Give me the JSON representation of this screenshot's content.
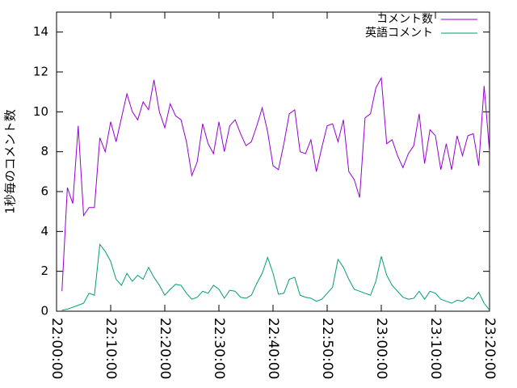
{
  "chart_data": {
    "type": "line",
    "ylabel": "1秒毎のコメント数",
    "x": [
      "22:01:00",
      "22:02:00",
      "22:03:00",
      "22:04:00",
      "22:05:00",
      "22:06:00",
      "22:07:00",
      "22:08:00",
      "22:09:00",
      "22:10:00",
      "22:11:00",
      "22:12:00",
      "22:13:00",
      "22:14:00",
      "22:15:00",
      "22:16:00",
      "22:17:00",
      "22:18:00",
      "22:19:00",
      "22:20:00",
      "22:21:00",
      "22:22:00",
      "22:23:00",
      "22:24:00",
      "22:25:00",
      "22:26:00",
      "22:27:00",
      "22:28:00",
      "22:29:00",
      "22:30:00",
      "22:31:00",
      "22:32:00",
      "22:33:00",
      "22:34:00",
      "22:35:00",
      "22:36:00",
      "22:37:00",
      "22:38:00",
      "22:39:00",
      "22:40:00",
      "22:41:00",
      "22:42:00",
      "22:43:00",
      "22:44:00",
      "22:45:00",
      "22:46:00",
      "22:47:00",
      "22:48:00",
      "22:49:00",
      "22:50:00",
      "22:51:00",
      "22:52:00",
      "22:53:00",
      "22:54:00",
      "22:55:00",
      "22:56:00",
      "22:57:00",
      "22:58:00",
      "22:59:00",
      "23:00:00",
      "23:01:00",
      "23:02:00",
      "23:03:00",
      "23:04:00",
      "23:05:00",
      "23:06:00",
      "23:07:00",
      "23:08:00",
      "23:09:00",
      "23:10:00",
      "23:11:00",
      "23:12:00",
      "23:13:00",
      "23:14:00",
      "23:15:00",
      "23:16:00",
      "23:17:00",
      "23:18:00",
      "23:19:00",
      "23:20:00"
    ],
    "series": [
      {
        "name": "コメント数",
        "color": "#9400d3",
        "values": [
          1.0,
          6.2,
          5.4,
          9.3,
          4.8,
          5.2,
          5.2,
          8.7,
          8.0,
          9.5,
          8.5,
          9.7,
          10.9,
          10.0,
          9.6,
          10.5,
          10.1,
          11.6,
          10.0,
          9.2,
          10.4,
          9.8,
          9.6,
          8.5,
          6.8,
          7.5,
          9.4,
          8.4,
          7.9,
          9.5,
          8.0,
          9.3,
          9.6,
          8.9,
          8.3,
          8.5,
          9.3,
          10.2,
          9.0,
          7.3,
          7.1,
          8.4,
          9.9,
          10.1,
          8.0,
          7.9,
          8.6,
          7.0,
          8.2,
          9.3,
          9.4,
          8.5,
          9.6,
          7.0,
          6.6,
          5.7,
          9.7,
          9.9,
          11.2,
          11.7,
          8.4,
          8.6,
          7.8,
          7.2,
          7.9,
          8.3,
          9.9,
          7.4,
          9.1,
          8.8,
          7.1,
          8.4,
          7.1,
          8.8,
          7.8,
          8.8,
          8.9,
          7.3,
          11.3,
          8.0
        ]
      },
      {
        "name": "英語コメント",
        "color": "#009e73",
        "values": [
          0.05,
          0.1,
          0.2,
          0.3,
          0.4,
          0.9,
          0.8,
          3.35,
          3.0,
          2.5,
          1.6,
          1.3,
          1.9,
          1.5,
          1.8,
          1.6,
          2.2,
          1.7,
          1.3,
          0.8,
          1.1,
          1.35,
          1.3,
          0.9,
          0.6,
          0.7,
          1.0,
          0.9,
          1.3,
          1.1,
          0.65,
          1.05,
          1.0,
          0.7,
          0.65,
          0.8,
          1.4,
          1.9,
          2.7,
          1.9,
          0.85,
          0.9,
          1.6,
          1.7,
          0.8,
          0.7,
          0.65,
          0.5,
          0.6,
          0.9,
          1.2,
          2.6,
          2.2,
          1.6,
          1.1,
          1.0,
          0.9,
          0.8,
          1.5,
          2.75,
          1.8,
          1.3,
          1.0,
          0.7,
          0.6,
          0.65,
          1.0,
          0.6,
          1.0,
          0.9,
          0.6,
          0.5,
          0.4,
          0.55,
          0.5,
          0.7,
          0.6,
          0.95,
          0.4,
          0.05
        ]
      }
    ],
    "xlim": [
      "22:00:00",
      "23:20:00"
    ],
    "xticks": [
      "22:00:00",
      "22:10:00",
      "22:20:00",
      "22:30:00",
      "22:40:00",
      "22:50:00",
      "23:00:00",
      "23:10:00",
      "23:20:00"
    ],
    "ylim": [
      0,
      15
    ],
    "yticks": [
      0,
      2,
      4,
      6,
      8,
      10,
      12,
      14
    ],
    "legend": "top-right"
  }
}
